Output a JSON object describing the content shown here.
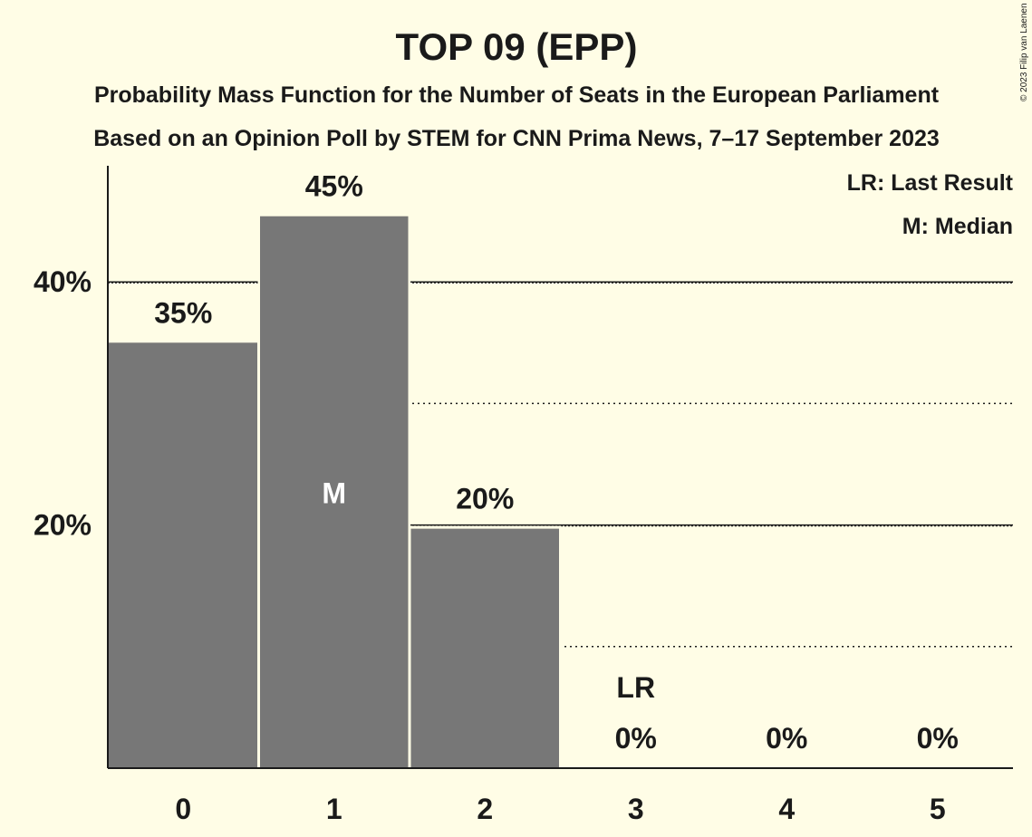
{
  "chart_data": {
    "type": "bar",
    "title": "TOP 09 (EPP)",
    "subtitle": "Probability Mass Function for the Number of Seats in the European Parliament",
    "subtitle2": "Based on an Opinion Poll by STEM for CNN Prima News, 7–17 September 2023",
    "copyright": "© 2023 Filip van Laenen",
    "legend": {
      "lr": "LR: Last Result",
      "m": "M: Median",
      "placement": "top-right"
    },
    "categories": [
      "0",
      "1",
      "2",
      "3",
      "4",
      "5"
    ],
    "values": [
      35,
      45.4,
      19.7,
      0,
      0,
      0
    ],
    "value_labels": [
      "35%",
      "45%",
      "20%",
      "0%",
      "0%",
      "0%"
    ],
    "median_index": 1,
    "median_marker": "M",
    "last_result_index": 3,
    "last_result_marker": "LR",
    "ylim": [
      0,
      49
    ],
    "yticks": [
      {
        "value": 20,
        "label": "20%"
      },
      {
        "value": 40,
        "label": "40%"
      }
    ],
    "dotted_gridlines": [
      10,
      30
    ],
    "grid": true,
    "bar_color": "#777777",
    "text_color": "#1a1a1a",
    "background": "#fffde6"
  }
}
